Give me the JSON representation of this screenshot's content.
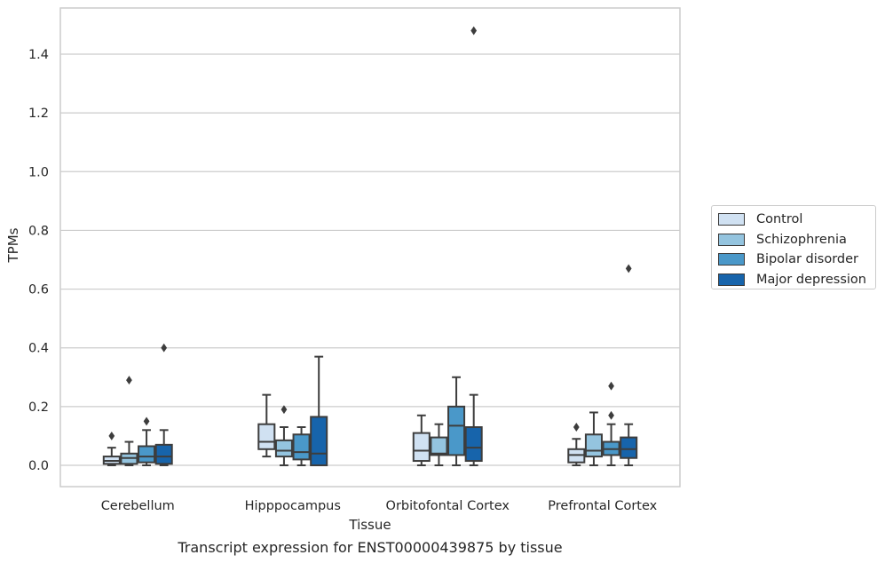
{
  "chart_data": {
    "type": "box",
    "title": "",
    "caption": "Transcript expression for ENST00000439875 by tissue",
    "xlabel": "Tissue",
    "ylabel": "TPMs",
    "ylim": [
      -0.07,
      1.56
    ],
    "yticks": [
      0.0,
      0.2,
      0.4,
      0.6,
      0.8,
      1.0,
      1.2,
      1.4
    ],
    "ytick_labels": [
      "0.0",
      "0.2",
      "0.4",
      "0.6",
      "0.8",
      "1.0",
      "1.2",
      "1.4"
    ],
    "grid": "horizontal",
    "legend_position": "right",
    "categories": [
      "Cerebellum",
      "Hipppocampus",
      "Orbitofontal Cortex",
      "Prefrontal Cortex"
    ],
    "series": [
      {
        "name": "Control",
        "color": "#d0e1f2",
        "boxes": [
          {
            "whislo": 0.0,
            "q1": 0.005,
            "med": 0.015,
            "q3": 0.03,
            "whishi": 0.06,
            "fliers": [
              0.1
            ]
          },
          {
            "whislo": 0.03,
            "q1": 0.055,
            "med": 0.08,
            "q3": 0.14,
            "whishi": 0.24,
            "fliers": []
          },
          {
            "whislo": 0.0,
            "q1": 0.015,
            "med": 0.05,
            "q3": 0.11,
            "whishi": 0.17,
            "fliers": []
          },
          {
            "whislo": 0.0,
            "q1": 0.01,
            "med": 0.035,
            "q3": 0.055,
            "whishi": 0.09,
            "fliers": [
              0.13
            ]
          }
        ]
      },
      {
        "name": "Schizophrenia",
        "color": "#94c4df",
        "boxes": [
          {
            "whislo": 0.0,
            "q1": 0.005,
            "med": 0.025,
            "q3": 0.04,
            "whishi": 0.08,
            "fliers": [
              0.29
            ]
          },
          {
            "whislo": 0.0,
            "q1": 0.03,
            "med": 0.05,
            "q3": 0.085,
            "whishi": 0.13,
            "fliers": [
              0.19
            ]
          },
          {
            "whislo": 0.0,
            "q1": 0.035,
            "med": 0.04,
            "q3": 0.095,
            "whishi": 0.14,
            "fliers": []
          },
          {
            "whislo": 0.0,
            "q1": 0.03,
            "med": 0.05,
            "q3": 0.105,
            "whishi": 0.18,
            "fliers": []
          }
        ]
      },
      {
        "name": "Bipolar disorder",
        "color": "#4a98c9",
        "boxes": [
          {
            "whislo": 0.0,
            "q1": 0.01,
            "med": 0.03,
            "q3": 0.065,
            "whishi": 0.12,
            "fliers": [
              0.15
            ]
          },
          {
            "whislo": 0.0,
            "q1": 0.02,
            "med": 0.045,
            "q3": 0.105,
            "whishi": 0.13,
            "fliers": []
          },
          {
            "whislo": 0.0,
            "q1": 0.035,
            "med": 0.135,
            "q3": 0.2,
            "whishi": 0.3,
            "fliers": []
          },
          {
            "whislo": 0.0,
            "q1": 0.035,
            "med": 0.055,
            "q3": 0.08,
            "whishi": 0.14,
            "fliers": [
              0.17,
              0.27
            ]
          }
        ]
      },
      {
        "name": "Major depression",
        "color": "#1764ab",
        "boxes": [
          {
            "whislo": 0.0,
            "q1": 0.005,
            "med": 0.03,
            "q3": 0.07,
            "whishi": 0.12,
            "fliers": [
              0.4
            ]
          },
          {
            "whislo": 0.0,
            "q1": 0.0,
            "med": 0.04,
            "q3": 0.165,
            "whishi": 0.37,
            "fliers": []
          },
          {
            "whislo": 0.0,
            "q1": 0.015,
            "med": 0.06,
            "q3": 0.13,
            "whishi": 0.24,
            "fliers": [
              1.48
            ]
          },
          {
            "whislo": 0.0,
            "q1": 0.025,
            "med": 0.055,
            "q3": 0.095,
            "whishi": 0.14,
            "fliers": [
              0.67
            ]
          }
        ]
      }
    ]
  }
}
